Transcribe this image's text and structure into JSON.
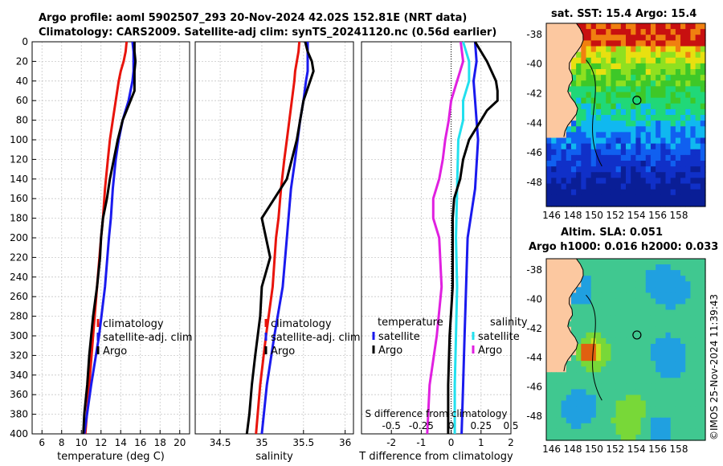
{
  "header": {
    "line1": "Argo profile: aoml 5902507_293 20-Nov-2024 42.02S 152.81E (NRT data)",
    "line2": "Climatology: CARS2009. Satellite-adj clim: synTS_20241120.nc (0.56d earlier)"
  },
  "colors": {
    "argo": "#000000",
    "clim": "#e8140c",
    "sat": "#1a1aee",
    "sat_s": "#22e0ee",
    "argo_s": "#e020e0"
  },
  "chart_data": [
    {
      "type": "line",
      "name": "temperature",
      "xlabel": "temperature (deg C)",
      "ylabel": "",
      "xlim": [
        5,
        21
      ],
      "ylim": [
        400,
        0
      ],
      "xticks": [
        6,
        8,
        10,
        12,
        14,
        16,
        18,
        20
      ],
      "yticks": [
        0,
        20,
        40,
        60,
        80,
        100,
        120,
        140,
        160,
        180,
        200,
        220,
        240,
        260,
        280,
        300,
        320,
        340,
        360,
        380,
        400
      ],
      "legend": [
        "climatology",
        "satellite-adj. clim",
        "Argo"
      ],
      "series": [
        {
          "name": "climatology",
          "depth": [
            0,
            10,
            20,
            30,
            40,
            60,
            80,
            100,
            120,
            150,
            180,
            200,
            250,
            300,
            350,
            400
          ],
          "values": [
            14.6,
            14.5,
            14.3,
            14.0,
            13.8,
            13.5,
            13.2,
            12.9,
            12.7,
            12.4,
            12.2,
            12.0,
            11.6,
            11.2,
            10.8,
            10.4
          ]
        },
        {
          "name": "satellite-adj. clim",
          "depth": [
            0,
            10,
            20,
            30,
            40,
            60,
            80,
            100,
            120,
            150,
            180,
            200,
            250,
            300,
            350,
            400
          ],
          "values": [
            15.2,
            15.3,
            15.3,
            15.3,
            15.2,
            14.8,
            14.2,
            13.8,
            13.5,
            13.2,
            13.0,
            12.8,
            12.4,
            11.8,
            11.0,
            10.3
          ]
        },
        {
          "name": "Argo",
          "depth": [
            0,
            10,
            20,
            30,
            40,
            50,
            60,
            70,
            80,
            100,
            120,
            140,
            160,
            180,
            200,
            220,
            250,
            280,
            300,
            320,
            350,
            380,
            400
          ],
          "values": [
            15.4,
            15.4,
            15.5,
            15.4,
            15.4,
            15.4,
            15.0,
            14.6,
            14.2,
            13.7,
            13.3,
            12.9,
            12.6,
            12.2,
            12.0,
            11.9,
            11.6,
            11.2,
            11.0,
            10.8,
            10.6,
            10.3,
            10.2
          ]
        }
      ]
    },
    {
      "type": "line",
      "name": "salinity",
      "xlabel": "salinity",
      "xlim": [
        34.2,
        36.1
      ],
      "ylim": [
        400,
        0
      ],
      "xticks": [
        34.5,
        35,
        35.5,
        36
      ],
      "legend": [
        "climatology",
        "satellite-adj. clim",
        "Argo"
      ],
      "series": [
        {
          "name": "climatology",
          "depth": [
            0,
            10,
            20,
            30,
            40,
            60,
            80,
            100,
            120,
            150,
            180,
            200,
            250,
            300,
            350,
            400
          ],
          "values": [
            35.45,
            35.44,
            35.42,
            35.4,
            35.39,
            35.36,
            35.33,
            35.3,
            35.27,
            35.23,
            35.2,
            35.17,
            35.13,
            35.05,
            34.98,
            34.93
          ]
        },
        {
          "name": "satellite-adj. clim",
          "depth": [
            0,
            10,
            20,
            30,
            40,
            60,
            80,
            100,
            120,
            150,
            180,
            200,
            250,
            300,
            350,
            400
          ],
          "values": [
            35.55,
            35.55,
            35.55,
            35.55,
            35.53,
            35.5,
            35.46,
            35.43,
            35.4,
            35.35,
            35.32,
            35.3,
            35.25,
            35.15,
            35.06,
            35.0
          ]
        },
        {
          "name": "Argo",
          "depth": [
            0,
            10,
            20,
            30,
            40,
            60,
            80,
            100,
            120,
            140,
            160,
            180,
            200,
            220,
            250,
            280,
            300,
            320,
            350,
            380,
            400
          ],
          "values": [
            35.52,
            35.55,
            35.6,
            35.62,
            35.58,
            35.5,
            35.46,
            35.42,
            35.36,
            35.3,
            35.15,
            35.0,
            35.05,
            35.1,
            35.0,
            34.98,
            34.95,
            34.92,
            34.88,
            34.85,
            34.82
          ]
        }
      ]
    },
    {
      "type": "line",
      "name": "difference",
      "xlabel": "T difference from climatology",
      "xlim": [
        -3,
        2
      ],
      "ylim": [
        400,
        0
      ],
      "xticks": [
        -2,
        -1,
        0,
        1,
        2
      ],
      "top_axis_label": "S difference from climatology",
      "top_ticks": [
        "-0.5",
        "-0.25",
        "0",
        "0.25",
        "0.5"
      ],
      "legend_temperature_title": "temperature",
      "legend_salinity_title": "salinity",
      "legend_temperature": [
        "satellite",
        "Argo"
      ],
      "legend_salinity": [
        "satellite",
        "Argo"
      ],
      "series": [
        {
          "name": "T satellite",
          "depth": [
            0,
            20,
            40,
            60,
            80,
            100,
            150,
            200,
            250,
            300,
            350,
            400
          ],
          "values": [
            0.8,
            0.85,
            0.75,
            0.8,
            0.85,
            0.9,
            0.8,
            0.55,
            0.5,
            0.45,
            0.4,
            0.35
          ]
        },
        {
          "name": "T Argo",
          "depth": [
            0,
            20,
            40,
            50,
            60,
            70,
            80,
            100,
            120,
            140,
            160,
            180,
            200,
            250,
            300,
            350,
            400
          ],
          "values": [
            0.8,
            1.2,
            1.5,
            1.55,
            1.55,
            1.2,
            1.0,
            0.6,
            0.4,
            0.3,
            0.1,
            0.05,
            0.05,
            0.05,
            -0.05,
            -0.1,
            -0.1
          ]
        },
        {
          "name": "S satellite",
          "depth": [
            0,
            20,
            40,
            60,
            80,
            100,
            150,
            200,
            250,
            300,
            350,
            400
          ],
          "values": [
            0.1,
            0.15,
            0.15,
            0.1,
            0.1,
            0.06,
            0.05,
            0.04,
            0.05,
            0.04,
            0.03,
            0.03
          ]
        },
        {
          "name": "S Argo",
          "depth": [
            0,
            20,
            40,
            60,
            80,
            100,
            120,
            140,
            160,
            180,
            200,
            250,
            300,
            350,
            400
          ],
          "values": [
            0.08,
            0.1,
            0.05,
            0.0,
            -0.02,
            -0.05,
            -0.07,
            -0.1,
            -0.15,
            -0.15,
            -0.1,
            -0.08,
            -0.12,
            -0.18,
            -0.2
          ]
        }
      ]
    }
  ],
  "map_sst": {
    "title": "sat. SST: 15.4 Argo: 15.4",
    "xticks": [
      "146",
      "148",
      "150",
      "152",
      "154",
      "156",
      "158"
    ],
    "yticks": [
      "-38",
      "-40",
      "-42",
      "-44",
      "-46",
      "-48"
    ]
  },
  "map_sla": {
    "title1": "Altim. SLA: 0.051",
    "title2": "Argo h1000: 0.016 h2000: 0.033",
    "xticks": [
      "146",
      "148",
      "150",
      "152",
      "154",
      "156",
      "158"
    ],
    "yticks": [
      "-38",
      "-40",
      "-42",
      "-44",
      "-46",
      "-48"
    ]
  },
  "stamp": "©IMOS 25-Nov-2024 11:39:43"
}
